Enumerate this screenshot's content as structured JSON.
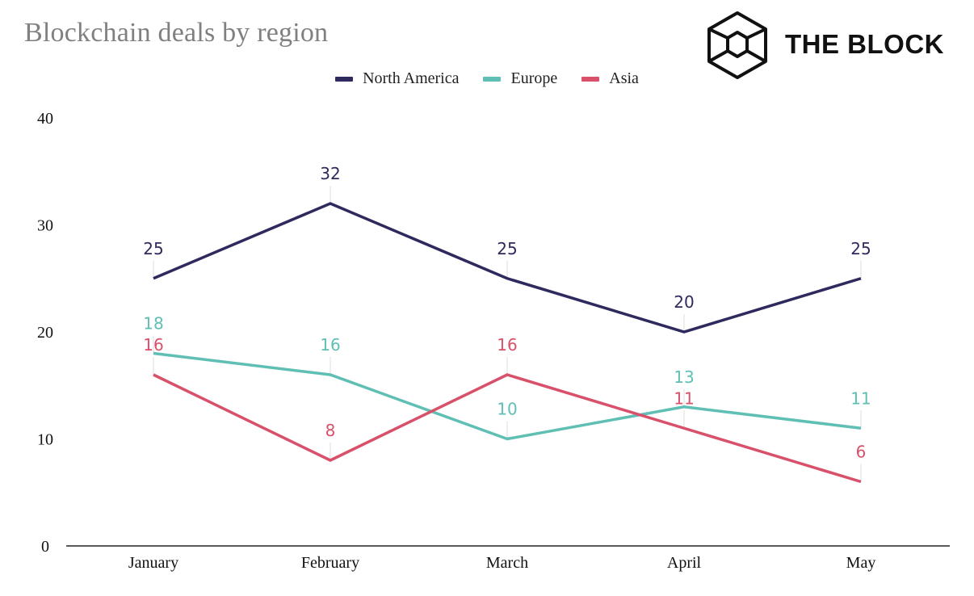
{
  "chart_data": {
    "type": "line",
    "title": "Blockchain deals by region",
    "categories": [
      "January",
      "February",
      "March",
      "April",
      "May"
    ],
    "ylim": [
      0,
      40
    ],
    "yticks": [
      0,
      10,
      20,
      30,
      40
    ],
    "xlabel": "",
    "ylabel": "",
    "grid": false,
    "legend_position": "top-center",
    "series": [
      {
        "name": "North America",
        "color": "#2e2a5e",
        "values": [
          25,
          32,
          25,
          20,
          25
        ]
      },
      {
        "name": "Europe",
        "color": "#5fbfb4",
        "values": [
          18,
          16,
          10,
          13,
          11
        ]
      },
      {
        "name": "Asia",
        "color": "#d9506a",
        "values": [
          16,
          8,
          16,
          11,
          6
        ]
      }
    ]
  },
  "brand": {
    "name": "THE BLOCK",
    "logo_icon": "cube-logo-icon"
  }
}
